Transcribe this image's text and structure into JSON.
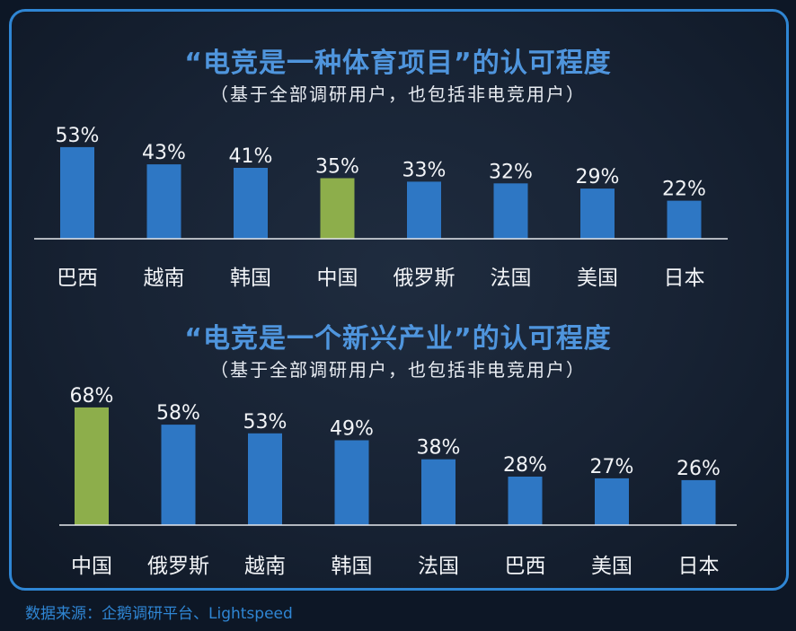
{
  "colors": {
    "bar": "#2e77c4",
    "highlight": "#8dae4b",
    "label": "#f2f4f7",
    "axis": "#e6e9ee",
    "title": "#4f95dd",
    "source": "#2f86d4"
  },
  "source_text": "数据来源：企鹅调研平台、Lightspeed",
  "chart_data": [
    {
      "type": "bar",
      "title": "“电竞是一种体育项目”的认可程度",
      "subtitle": "（基于全部调研用户，也包括非电竞用户）",
      "categories": [
        "巴西",
        "越南",
        "韩国",
        "中国",
        "俄罗斯",
        "法国",
        "美国",
        "日本"
      ],
      "values": [
        53,
        43,
        41,
        35,
        33,
        32,
        29,
        22
      ],
      "labels": [
        "53%",
        "43%",
        "41%",
        "35%",
        "33%",
        "32%",
        "29%",
        "22%"
      ],
      "highlight": "中国",
      "ylim": [
        0,
        55
      ],
      "grid": false
    },
    {
      "type": "bar",
      "title": "“电竞是一个新兴产业”的认可程度",
      "subtitle": "（基于全部调研用户，也包括非电竞用户）",
      "categories": [
        "中国",
        "俄罗斯",
        "越南",
        "韩国",
        "法国",
        "巴西",
        "美国",
        "日本"
      ],
      "values": [
        68,
        58,
        53,
        49,
        38,
        28,
        27,
        26
      ],
      "labels": [
        "68%",
        "58%",
        "53%",
        "49%",
        "38%",
        "28%",
        "27%",
        "26%"
      ],
      "highlight": "中国",
      "ylim": [
        0,
        70
      ],
      "grid": false
    }
  ]
}
